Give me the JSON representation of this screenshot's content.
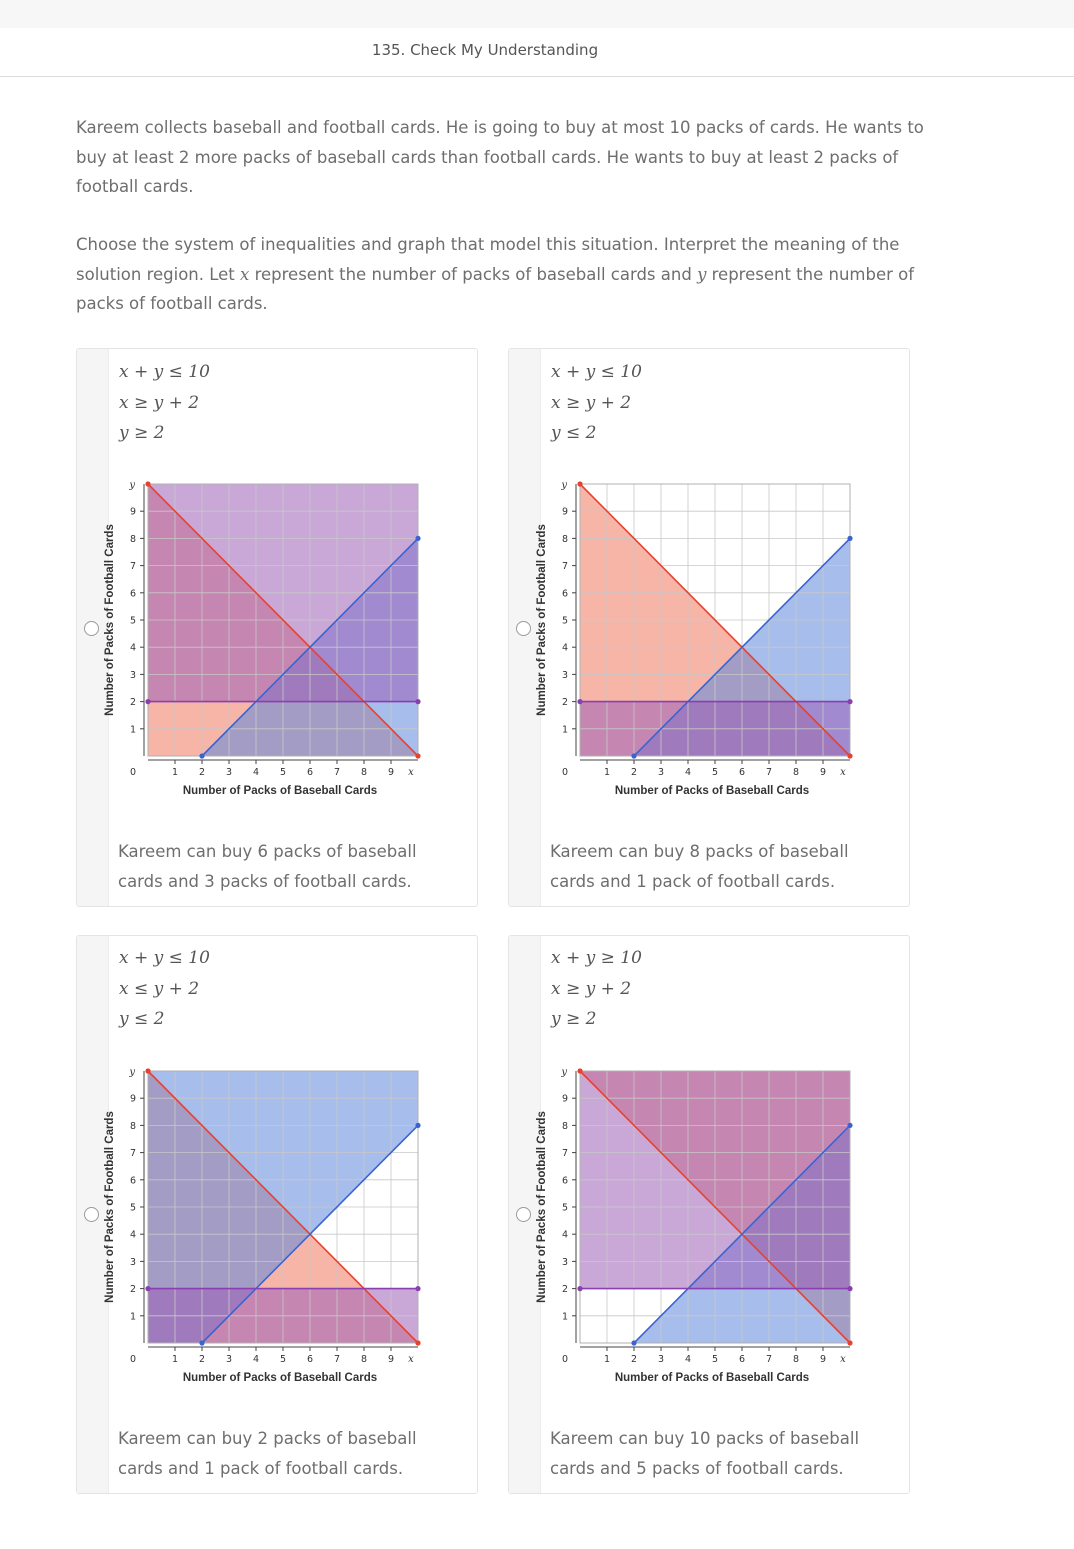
{
  "header": {
    "title": "135. Check My Understanding"
  },
  "question": {
    "paragraph1": "Kareem collects baseball and football cards. He is going to buy at most 10 packs of cards. He wants to buy at least 2 more packs of baseball cards than football cards. He wants to buy at least 2 packs of football cards.",
    "paragraph2_pre": "Choose the system of inequalities and graph that model this situation. Interpret the meaning of the solution region. Let ",
    "var_x": "x",
    "paragraph2_mid": " represent the number of packs of baseball cards and ",
    "var_y": "y",
    "paragraph2_post": " represent the number of packs of football cards."
  },
  "graph_labels": {
    "xlabel": "Number of Packs of Baseball Cards",
    "ylabel": "Number of Packs of Football Cards",
    "x_axis_var": "x",
    "y_axis_var": "y",
    "origin": "0",
    "x_ticks": [
      "1",
      "2",
      "3",
      "4",
      "5",
      "6",
      "7",
      "8",
      "9"
    ],
    "y_ticks": [
      "1",
      "2",
      "3",
      "4",
      "5",
      "6",
      "7",
      "8",
      "9"
    ]
  },
  "colors": {
    "red": "#f07860",
    "blue": "#5e86dc",
    "purple": "#9c60b8",
    "red_line": "#e8412e",
    "blue_line": "#3a63d1",
    "purple_line": "#8a3fb0"
  },
  "options": [
    {
      "inequalities": [
        "x + y ≤ 10",
        "x ≥ y + 2",
        "y ≥ 2"
      ],
      "interpretation": "Kareem can buy 6 packs of baseball cards and 3 packs of football cards.",
      "chart_data": {
        "type": "region",
        "xlim": [
          0,
          10
        ],
        "ylim": [
          0,
          10
        ],
        "grid": true,
        "series": [
          {
            "relation": "x + y ≤ 10",
            "color": "red"
          },
          {
            "relation": "x ≥ y + 2",
            "color": "blue"
          },
          {
            "relation": "y ≥ 2",
            "color": "purple"
          }
        ]
      }
    },
    {
      "inequalities": [
        "x + y ≤ 10",
        "x ≥ y + 2",
        "y ≤ 2"
      ],
      "interpretation": "Kareem can buy 8 packs of baseball cards and 1 pack of football cards.",
      "chart_data": {
        "type": "region",
        "xlim": [
          0,
          10
        ],
        "ylim": [
          0,
          10
        ],
        "grid": true,
        "series": [
          {
            "relation": "x + y ≤ 10",
            "color": "red"
          },
          {
            "relation": "x ≥ y + 2",
            "color": "blue"
          },
          {
            "relation": "y ≤ 2",
            "color": "purple"
          }
        ]
      }
    },
    {
      "inequalities": [
        "x + y ≤ 10",
        "x ≤ y + 2",
        "y ≤ 2"
      ],
      "interpretation": "Kareem can buy 2 packs of baseball cards and 1 pack of football cards.",
      "chart_data": {
        "type": "region",
        "xlim": [
          0,
          10
        ],
        "ylim": [
          0,
          10
        ],
        "grid": true,
        "series": [
          {
            "relation": "x + y ≤ 10",
            "color": "red"
          },
          {
            "relation": "x ≤ y + 2",
            "color": "blue"
          },
          {
            "relation": "y ≤ 2",
            "color": "purple"
          }
        ]
      }
    },
    {
      "inequalities": [
        "x + y ≥ 10",
        "x ≥ y + 2",
        "y ≥ 2"
      ],
      "interpretation": "Kareem can buy 10 packs of baseball cards and 5 packs of football cards.",
      "chart_data": {
        "type": "region",
        "xlim": [
          0,
          10
        ],
        "ylim": [
          0,
          10
        ],
        "grid": true,
        "series": [
          {
            "relation": "x + y ≥ 10",
            "color": "red"
          },
          {
            "relation": "x ≥ y + 2",
            "color": "blue"
          },
          {
            "relation": "y ≥ 2",
            "color": "purple"
          }
        ]
      }
    }
  ]
}
